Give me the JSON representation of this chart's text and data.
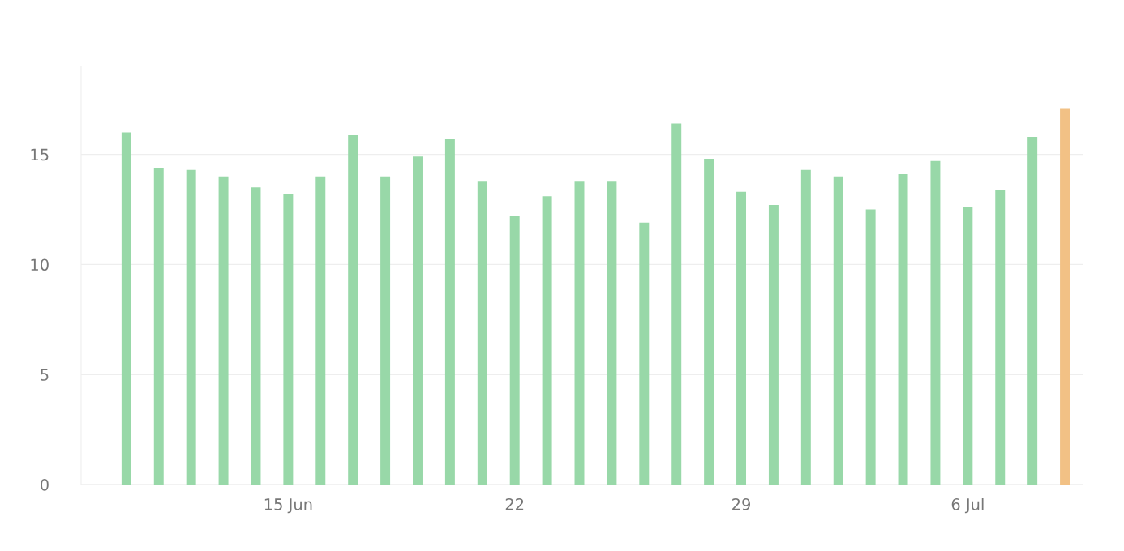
{
  "chart_data": {
    "type": "bar",
    "categories": [
      null,
      null,
      null,
      null,
      null,
      "15 Jun",
      null,
      null,
      null,
      null,
      null,
      null,
      "22",
      null,
      null,
      null,
      null,
      null,
      null,
      "29",
      null,
      null,
      null,
      null,
      null,
      null,
      "6 Jul",
      null,
      null,
      null
    ],
    "values": [
      16.0,
      14.4,
      14.3,
      14.0,
      13.5,
      13.2,
      14.0,
      15.9,
      14.0,
      14.9,
      15.7,
      13.8,
      12.2,
      13.1,
      13.8,
      13.8,
      11.9,
      16.4,
      14.8,
      13.3,
      12.7,
      14.3,
      14.0,
      12.5,
      14.1,
      14.7,
      12.6,
      13.4,
      15.8,
      17.1
    ],
    "colors": [
      "#98d8a8",
      "#98d8a8",
      "#98d8a8",
      "#98d8a8",
      "#98d8a8",
      "#98d8a8",
      "#98d8a8",
      "#98d8a8",
      "#98d8a8",
      "#98d8a8",
      "#98d8a8",
      "#98d8a8",
      "#98d8a8",
      "#98d8a8",
      "#98d8a8",
      "#98d8a8",
      "#98d8a8",
      "#98d8a8",
      "#98d8a8",
      "#98d8a8",
      "#98d8a8",
      "#98d8a8",
      "#98d8a8",
      "#98d8a8",
      "#98d8a8",
      "#98d8a8",
      "#98d8a8",
      "#98d8a8",
      "#98d8a8",
      "#f2c185"
    ],
    "ylim": [
      0,
      19
    ],
    "yticks": [
      0,
      5,
      10,
      15
    ],
    "grid": "y"
  }
}
